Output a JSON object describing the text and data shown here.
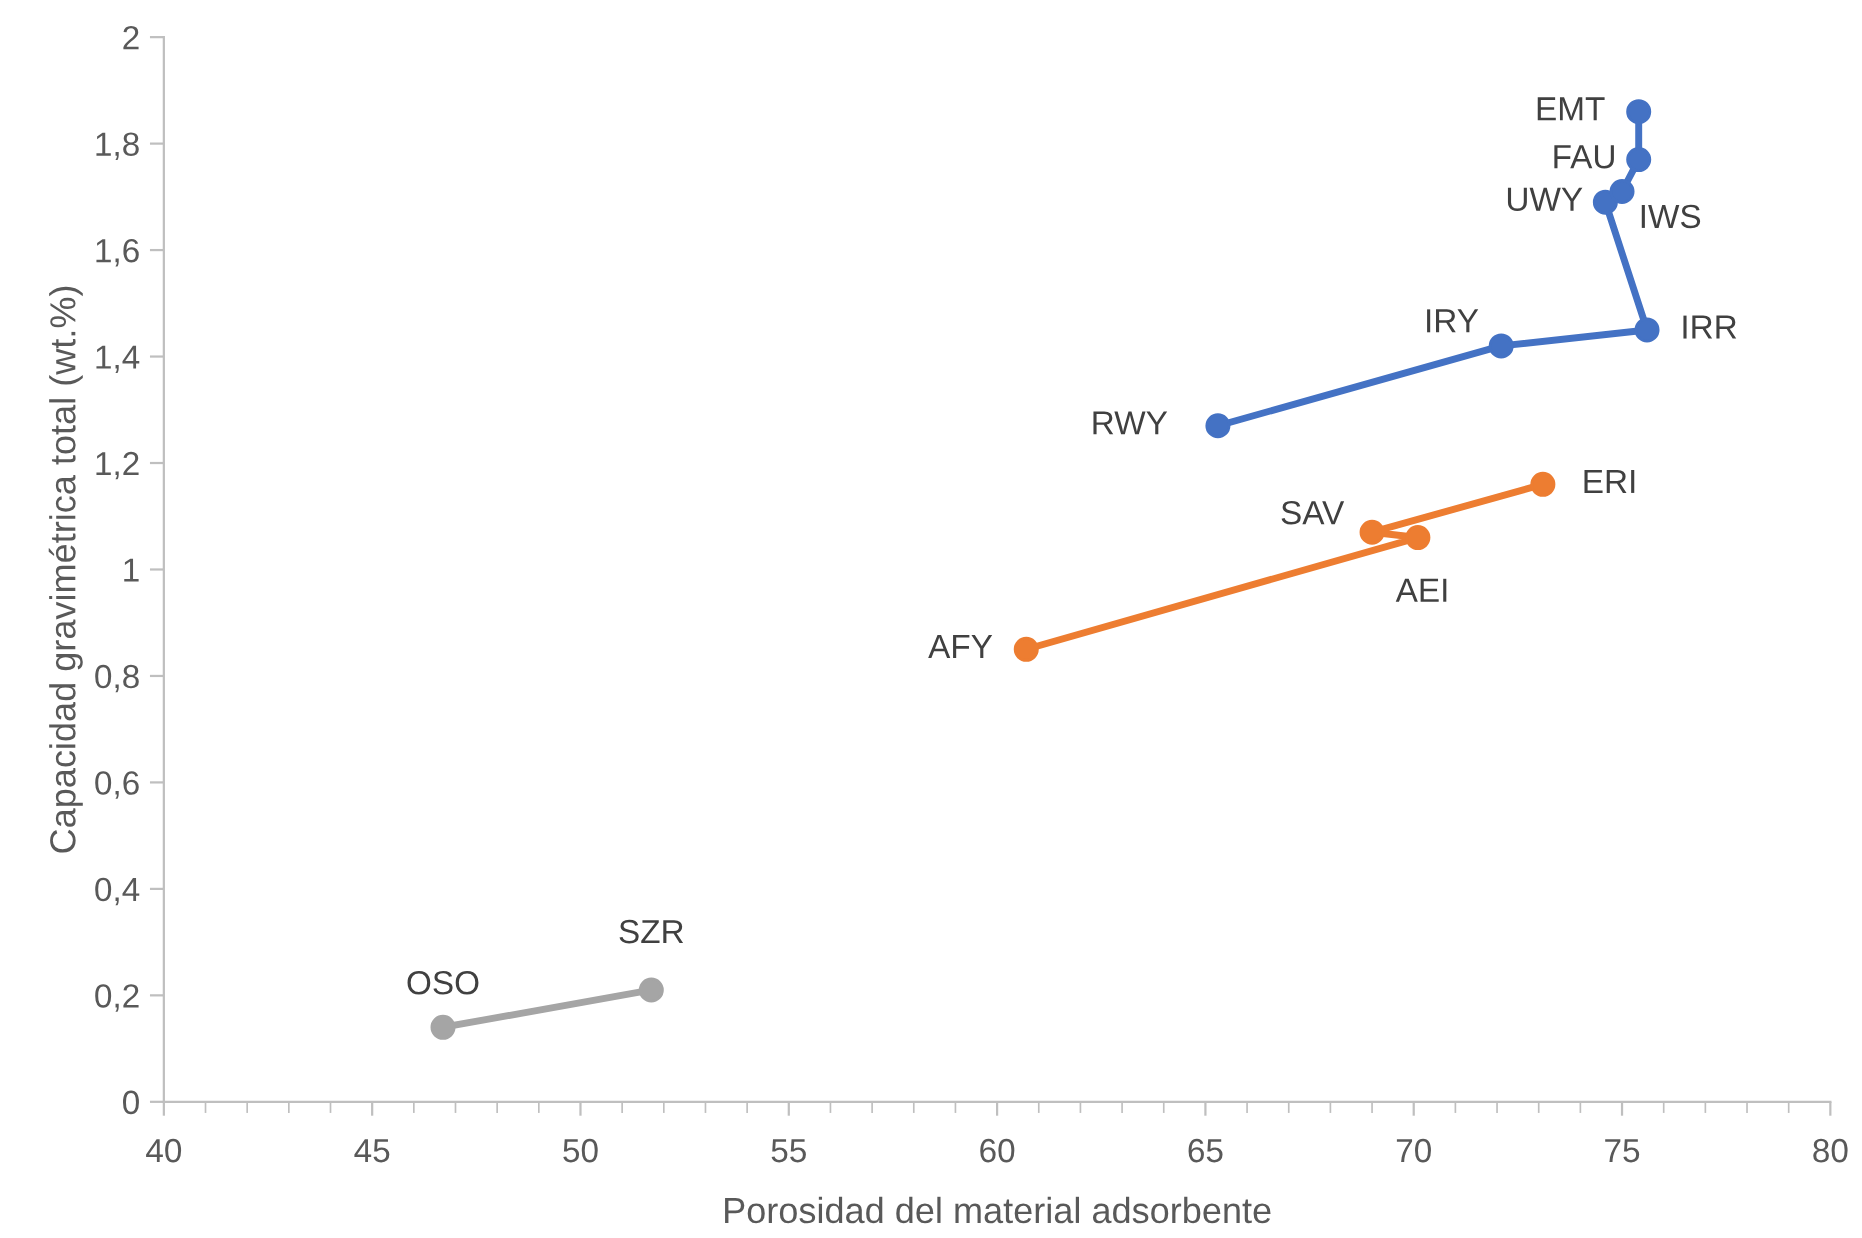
{
  "chart_data": {
    "type": "line",
    "xlabel": "Porosidad del material adsorbente",
    "ylabel": "Capacidad gravimétrica total (wt.%)",
    "series": [
      {
        "color": "#4472c4",
        "x": [
          65.3,
          72.1,
          75.6,
          74.6,
          75.0,
          75.4,
          75.4
        ],
        "values": [
          1.27,
          1.42,
          1.45,
          1.69,
          1.71,
          1.77,
          1.86
        ]
      },
      {
        "color": "#ed7d31",
        "x": [
          60.7,
          70.1,
          69.0,
          73.1
        ],
        "values": [
          0.85,
          1.06,
          1.07,
          1.16
        ]
      },
      {
        "color": "#a5a5a5",
        "x": [
          46.7,
          51.7
        ],
        "values": [
          0.14,
          0.21
        ]
      }
    ],
    "annotations": [
      {
        "text": "RWY",
        "x": 65.3,
        "y": 1.27
      },
      {
        "text": "IRY",
        "x": 72.1,
        "y": 1.42
      },
      {
        "text": "IRR",
        "x": 75.6,
        "y": 1.45
      },
      {
        "text": "UWY",
        "x": 74.6,
        "y": 1.69
      },
      {
        "text": "IWS",
        "x": 75.0,
        "y": 1.71
      },
      {
        "text": "FAU",
        "x": 75.4,
        "y": 1.77
      },
      {
        "text": "EMT",
        "x": 75.4,
        "y": 1.86
      },
      {
        "text": "AFY",
        "x": 60.7,
        "y": 0.85
      },
      {
        "text": "AEI",
        "x": 70.1,
        "y": 1.06
      },
      {
        "text": "SAV",
        "x": 69.0,
        "y": 1.07
      },
      {
        "text": "ERI",
        "x": 73.1,
        "y": 1.16
      },
      {
        "text": "OSO",
        "x": 46.7,
        "y": 0.14
      },
      {
        "text": "SZR",
        "x": 51.7,
        "y": 0.21
      }
    ],
    "xlim": [
      40,
      80
    ],
    "xticks": [
      40,
      45,
      50,
      55,
      60,
      65,
      70,
      75,
      80
    ],
    "ylim": [
      0,
      2
    ],
    "yticks": [
      0,
      {
        "value": 0.2,
        "label": "0,2"
      },
      {
        "value": 0.4,
        "label": "0,4"
      },
      {
        "value": 0.6,
        "label": "0,6"
      },
      {
        "value": 0.8,
        "label": "0,8"
      },
      1,
      {
        "value": 1.2,
        "label": "1,2"
      },
      {
        "value": 1.4,
        "label": "1,4"
      },
      {
        "value": 1.6,
        "label": "1,6"
      },
      {
        "value": 1.8,
        "label": "1,8"
      },
      2
    ],
    "marker": "circle",
    "line_style": "solid",
    "grid": false,
    "legend": false
  }
}
